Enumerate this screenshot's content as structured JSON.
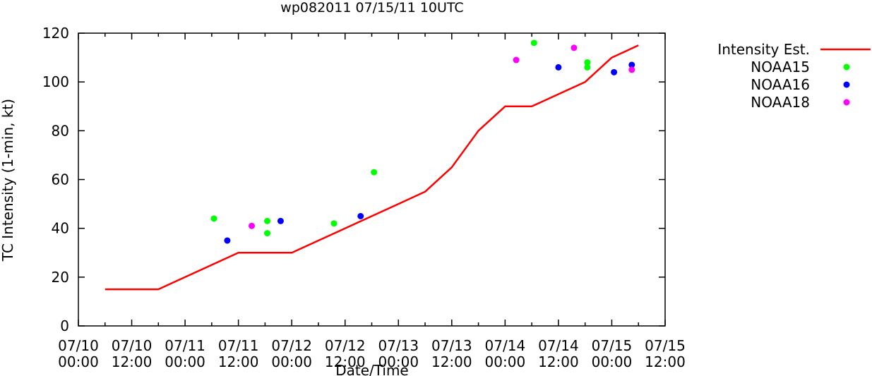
{
  "chart_data": {
    "type": "line",
    "title": "wp082011 07/15/11 10UTC",
    "xlabel": "Date/Time",
    "ylabel": "TC Intensity (1-min, kt)",
    "ylim": [
      0,
      120
    ],
    "yticks": [
      0,
      20,
      40,
      60,
      80,
      100,
      120
    ],
    "xlim_hours": [
      0,
      132
    ],
    "xticks": [
      {
        "h": 0,
        "line1": "07/10",
        "line2": "00:00"
      },
      {
        "h": 12,
        "line1": "07/10",
        "line2": "12:00"
      },
      {
        "h": 24,
        "line1": "07/11",
        "line2": "00:00"
      },
      {
        "h": 36,
        "line1": "07/11",
        "line2": "12:00"
      },
      {
        "h": 48,
        "line1": "07/12",
        "line2": "00:00"
      },
      {
        "h": 60,
        "line1": "07/12",
        "line2": "12:00"
      },
      {
        "h": 72,
        "line1": "07/13",
        "line2": "00:00"
      },
      {
        "h": 84,
        "line1": "07/13",
        "line2": "12:00"
      },
      {
        "h": 96,
        "line1": "07/14",
        "line2": "00:00"
      },
      {
        "h": 108,
        "line1": "07/14",
        "line2": "12:00"
      },
      {
        "h": 120,
        "line1": "07/15",
        "line2": "00:00"
      },
      {
        "h": 132,
        "line1": "07/15",
        "line2": "12:00"
      }
    ],
    "grid": false,
    "legend_position": "outside-right",
    "series": [
      {
        "name": "Intensity Est.",
        "style": "line",
        "color": "#ff0000",
        "points": [
          [
            6,
            15
          ],
          [
            18,
            15
          ],
          [
            30,
            25
          ],
          [
            36,
            30
          ],
          [
            48,
            30
          ],
          [
            60,
            40
          ],
          [
            72,
            50
          ],
          [
            78,
            55
          ],
          [
            84,
            65
          ],
          [
            90,
            80
          ],
          [
            96,
            90
          ],
          [
            102,
            90
          ],
          [
            108,
            95
          ],
          [
            114,
            100
          ],
          [
            120,
            110
          ],
          [
            126,
            115
          ]
        ]
      },
      {
        "name": "NOAA15",
        "style": "points",
        "color": "#00ff00",
        "points": [
          [
            30.5,
            44
          ],
          [
            42.5,
            43
          ],
          [
            42.5,
            38
          ],
          [
            57.5,
            42
          ],
          [
            66.5,
            63
          ],
          [
            102.5,
            116
          ],
          [
            114.5,
            108
          ],
          [
            114.5,
            106
          ]
        ]
      },
      {
        "name": "NOAA16",
        "style": "points",
        "color": "#0000ff",
        "points": [
          [
            33.5,
            35
          ],
          [
            45.5,
            43
          ],
          [
            63.5,
            45
          ],
          [
            108,
            106
          ],
          [
            120.5,
            104
          ],
          [
            124.5,
            107
          ]
        ]
      },
      {
        "name": "NOAA18",
        "style": "points",
        "color": "#ff00ff",
        "points": [
          [
            39,
            41
          ],
          [
            98.5,
            109
          ],
          [
            111.5,
            114
          ],
          [
            124.5,
            105
          ]
        ]
      }
    ]
  }
}
